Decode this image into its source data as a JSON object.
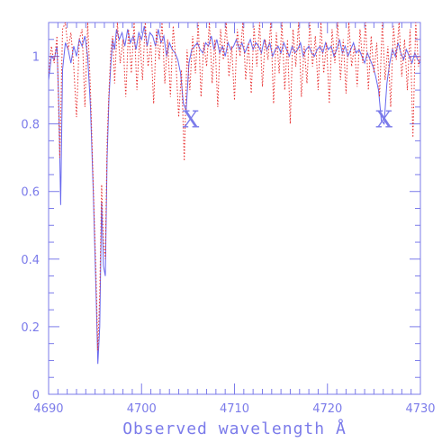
{
  "chart_data": {
    "type": "line",
    "title": "",
    "xlabel": "Observed wavelength Å",
    "ylabel": "",
    "xlim": [
      4690,
      4730
    ],
    "ylim": [
      0,
      1.1
    ],
    "x_ticks": [
      4690,
      4700,
      4710,
      4720,
      4730
    ],
    "y_ticks": [
      0,
      0.2,
      0.4,
      0.6,
      0.8,
      1
    ],
    "legend": "none",
    "grid": false,
    "colors": {
      "axis": "#7b7bea",
      "blue_series": "#6666ee",
      "red_series": "#e83030"
    },
    "series": [
      {
        "style": "solid",
        "color": "#6666ee",
        "x": [
          4690.0,
          4690.3,
          4690.6,
          4690.9,
          4691.1,
          4691.3,
          4691.5,
          4691.8,
          4692.1,
          4692.4,
          4692.7,
          4693.0,
          4693.3,
          4693.6,
          4693.9,
          4694.2,
          4694.5,
          4694.8,
          4695.1,
          4695.3,
          4695.5,
          4695.7,
          4695.9,
          4696.1,
          4696.3,
          4696.5,
          4696.7,
          4696.9,
          4697.1,
          4697.3,
          4697.6,
          4697.9,
          4698.2,
          4698.5,
          4698.8,
          4699.1,
          4699.4,
          4699.7,
          4700.0,
          4700.3,
          4700.6,
          4700.9,
          4701.2,
          4701.5,
          4701.8,
          4702.1,
          4702.4,
          4702.7,
          4703.0,
          4703.3,
          4703.6,
          4703.9,
          4704.2,
          4704.5,
          4704.8,
          4705.1,
          4705.4,
          4705.7,
          4706.0,
          4706.3,
          4706.6,
          4706.9,
          4707.2,
          4707.5,
          4707.8,
          4708.1,
          4708.4,
          4708.7,
          4709.0,
          4709.3,
          4709.6,
          4709.9,
          4710.2,
          4710.5,
          4710.8,
          4711.1,
          4711.4,
          4711.7,
          4712.0,
          4712.3,
          4712.6,
          4712.9,
          4713.2,
          4713.5,
          4713.8,
          4714.1,
          4714.4,
          4714.7,
          4715.0,
          4715.3,
          4715.6,
          4715.9,
          4716.2,
          4716.5,
          4716.8,
          4717.1,
          4717.4,
          4717.7,
          4718.0,
          4718.3,
          4718.6,
          4718.9,
          4719.2,
          4719.5,
          4719.8,
          4720.1,
          4720.4,
          4720.7,
          4721.0,
          4721.3,
          4721.6,
          4721.9,
          4722.2,
          4722.5,
          4722.8,
          4723.1,
          4723.4,
          4723.7,
          4724.0,
          4724.3,
          4724.6,
          4724.9,
          4725.2,
          4725.5,
          4725.8,
          4726.1,
          4726.4,
          4726.7,
          4727.0,
          4727.3,
          4727.6,
          4727.9,
          4728.2,
          4728.5,
          4728.8,
          4729.1,
          4729.4,
          4729.7,
          4730.0
        ],
        "y": [
          0.93,
          1.0,
          0.99,
          1.03,
          0.85,
          0.56,
          0.96,
          1.04,
          1.02,
          0.98,
          1.03,
          1.0,
          1.05,
          1.03,
          1.06,
          1.0,
          0.85,
          0.6,
          0.3,
          0.09,
          0.2,
          0.57,
          0.38,
          0.35,
          0.7,
          0.88,
          0.98,
          1.05,
          1.02,
          1.08,
          1.05,
          1.07,
          1.03,
          1.08,
          1.04,
          1.06,
          1.02,
          1.07,
          1.05,
          1.09,
          1.03,
          1.07,
          1.06,
          1.03,
          1.08,
          1.04,
          1.06,
          1.0,
          1.04,
          1.02,
          1.01,
          0.99,
          0.95,
          0.86,
          0.84,
          0.98,
          1.02,
          1.03,
          1.04,
          1.02,
          1.01,
          1.04,
          1.03,
          1.06,
          1.02,
          1.05,
          1.01,
          1.03,
          1.0,
          1.04,
          1.02,
          1.03,
          1.05,
          1.02,
          1.04,
          1.01,
          1.03,
          1.05,
          1.02,
          1.04,
          1.03,
          1.01,
          1.05,
          1.02,
          1.04,
          1.0,
          1.02,
          1.03,
          1.01,
          1.04,
          1.02,
          1.0,
          1.03,
          1.01,
          1.02,
          1.04,
          1.0,
          1.02,
          1.03,
          1.01,
          1.0,
          1.02,
          1.03,
          1.01,
          1.04,
          1.02,
          1.03,
          1.0,
          1.02,
          1.05,
          1.01,
          1.03,
          1.0,
          1.02,
          1.04,
          1.01,
          1.02,
          1.0,
          0.98,
          1.01,
          0.99,
          0.97,
          0.94,
          0.9,
          0.81,
          0.8,
          0.92,
          0.98,
          1.02,
          1.0,
          1.04,
          1.01,
          0.99,
          1.02,
          1.0,
          0.98,
          1.01,
          0.99,
          0.98
        ]
      },
      {
        "style": "dotted",
        "color": "#e83030",
        "x": [
          4690.0,
          4690.3,
          4690.6,
          4690.9,
          4691.2,
          4691.5,
          4691.8,
          4692.1,
          4692.4,
          4692.7,
          4693.0,
          4693.3,
          4693.6,
          4693.9,
          4694.2,
          4694.5,
          4694.8,
          4695.1,
          4695.3,
          4695.5,
          4695.7,
          4695.9,
          4696.1,
          4696.3,
          4696.5,
          4696.7,
          4696.9,
          4697.1,
          4697.4,
          4697.7,
          4698.0,
          4698.3,
          4698.6,
          4698.9,
          4699.2,
          4699.5,
          4699.8,
          4700.1,
          4700.4,
          4700.7,
          4701.0,
          4701.3,
          4701.6,
          4701.9,
          4702.2,
          4702.5,
          4702.8,
          4703.1,
          4703.4,
          4703.7,
          4704.0,
          4704.3,
          4704.6,
          4704.9,
          4705.2,
          4705.5,
          4705.8,
          4706.1,
          4706.4,
          4706.7,
          4707.0,
          4707.3,
          4707.6,
          4707.9,
          4708.2,
          4708.5,
          4708.8,
          4709.1,
          4709.4,
          4709.7,
          4710.0,
          4710.3,
          4710.6,
          4710.9,
          4711.2,
          4711.5,
          4711.8,
          4712.1,
          4712.4,
          4712.7,
          4713.0,
          4713.3,
          4713.6,
          4713.9,
          4714.2,
          4714.5,
          4714.8,
          4715.1,
          4715.4,
          4715.7,
          4716.0,
          4716.3,
          4716.6,
          4716.9,
          4717.2,
          4717.5,
          4717.8,
          4718.1,
          4718.4,
          4718.7,
          4719.0,
          4719.3,
          4719.6,
          4719.9,
          4720.2,
          4720.5,
          4720.8,
          4721.1,
          4721.4,
          4721.7,
          4722.0,
          4722.3,
          4722.6,
          4722.9,
          4723.2,
          4723.5,
          4723.8,
          4724.1,
          4724.4,
          4724.7,
          4725.0,
          4725.3,
          4725.6,
          4725.9,
          4726.2,
          4726.5,
          4726.8,
          4727.1,
          4727.4,
          4727.7,
          4728.0,
          4728.3,
          4728.6,
          4728.9,
          4729.2,
          4729.5,
          4729.8,
          4730.0
        ],
        "y": [
          0.95,
          1.03,
          0.98,
          1.06,
          0.7,
          1.08,
          1.1,
          1.02,
          1.07,
          0.97,
          0.82,
          1.05,
          1.08,
          0.85,
          1.1,
          0.9,
          0.62,
          0.35,
          0.13,
          0.3,
          0.62,
          0.45,
          0.4,
          0.75,
          0.9,
          1.02,
          1.06,
          0.92,
          1.1,
          0.98,
          1.05,
          0.88,
          1.08,
          0.95,
          1.1,
          0.9,
          1.06,
          0.93,
          1.1,
          0.97,
          1.04,
          0.86,
          1.08,
          0.99,
          1.1,
          0.92,
          1.05,
          0.88,
          1.09,
          0.98,
          0.82,
          0.96,
          0.69,
          1.02,
          0.9,
          1.06,
          0.95,
          1.1,
          0.88,
          1.04,
          0.97,
          1.1,
          0.92,
          1.05,
          0.85,
          1.08,
          0.99,
          1.1,
          0.94,
          1.03,
          0.87,
          1.08,
          1.0,
          1.1,
          0.93,
          1.04,
          0.89,
          1.09,
          0.97,
          1.1,
          0.91,
          1.05,
          0.99,
          1.1,
          0.86,
          1.07,
          0.95,
          1.1,
          0.9,
          1.05,
          0.8,
          1.08,
          0.97,
          1.1,
          0.88,
          1.03,
          0.92,
          1.1,
          0.97,
          1.06,
          0.9,
          1.1,
          0.95,
          1.04,
          0.86,
          1.08,
          0.98,
          1.1,
          0.93,
          1.05,
          0.89,
          1.1,
          0.97,
          1.03,
          0.91,
          1.08,
          0.98,
          1.1,
          0.9,
          1.06,
          0.95,
          1.04,
          0.88,
          1.1,
          0.93,
          1.03,
          0.85,
          1.09,
          0.99,
          1.1,
          0.94,
          1.05,
          0.9,
          1.08,
          0.76,
          1.1,
          0.97,
          1.0
        ]
      }
    ],
    "annotations": [
      {
        "text": "X",
        "x": 4705.3,
        "y": 0.79
      },
      {
        "text": "X",
        "x": 4726.1,
        "y": 0.79
      }
    ]
  }
}
